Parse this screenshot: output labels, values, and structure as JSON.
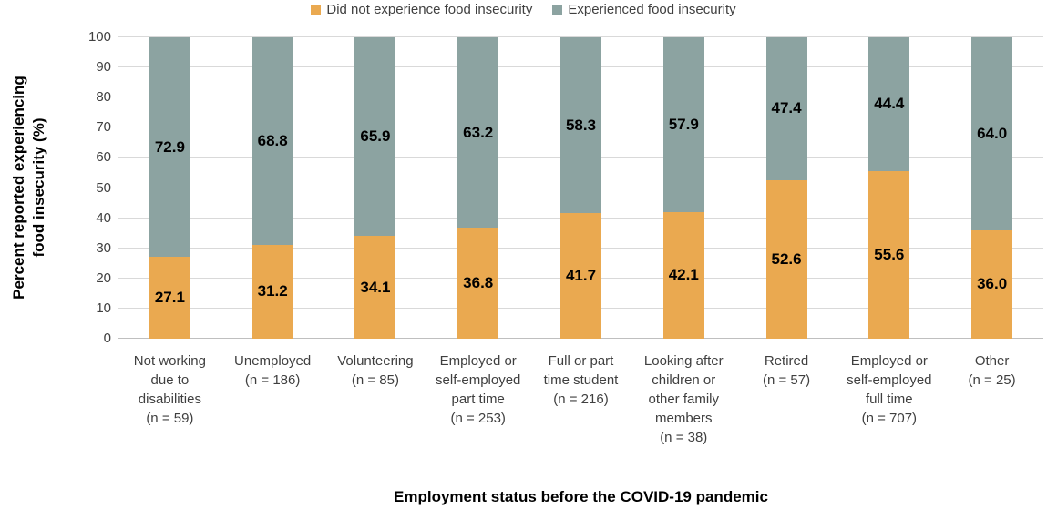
{
  "chart_data": {
    "type": "bar",
    "stacked": true,
    "xlabel": "Employment status before the COVID-19 pandemic",
    "ylabel": "Percent reported experiencing food insecurity (%)",
    "ylabel_lines": {
      "0": "Percent reported experiencing",
      "1": "food insecurity (%)"
    },
    "ylim": [
      0,
      100
    ],
    "ytick_step": 10,
    "grid": true,
    "legend_position": "top",
    "label_format_decimals": 1,
    "categories": [
      "Not working\ndue to\ndisabilities\n(n = 59)",
      "Unemployed\n(n = 186)",
      "Volunteering\n(n = 85)",
      "Employed or\nself-employed\npart time\n(n = 253)",
      "Full or part\ntime student\n(n = 216)",
      "Looking after\nchildren or\nother family\nmembers\n(n = 38)",
      "Retired\n(n = 57)",
      "Employed or\nself-employed\nfull time\n(n = 707)",
      "Other\n(n = 25)"
    ],
    "series": [
      {
        "name": "Did not experience food insecurity",
        "color": "#EAA950",
        "values": [
          27.1,
          31.2,
          34.1,
          36.8,
          41.7,
          42.1,
          52.6,
          55.6,
          36.0
        ]
      },
      {
        "name": "Experienced food insecurity",
        "color": "#8CA3A1",
        "values": [
          72.9,
          68.8,
          65.9,
          63.2,
          58.3,
          57.9,
          47.4,
          44.4,
          64.0
        ]
      }
    ],
    "colors": {
      "gridline": "#D9D9D9",
      "baseline": "#BFBFBF",
      "tick_text": "#404040",
      "category_text": "#3F3F3F",
      "data_label_text": "#000000"
    }
  }
}
